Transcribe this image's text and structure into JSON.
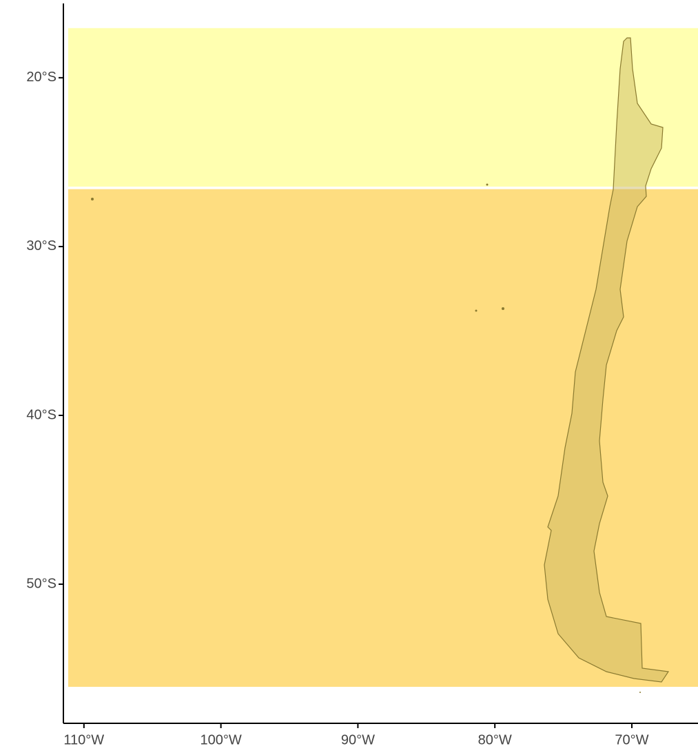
{
  "chart_data": {
    "type": "map",
    "xlim": [
      -111.5,
      -65.17
    ],
    "ylim": [
      -58.24,
      -15.6
    ],
    "xticks": [
      {
        "value": -110,
        "label": "110°W"
      },
      {
        "value": -100,
        "label": "100°W"
      },
      {
        "value": -90,
        "label": "90°W"
      },
      {
        "value": -80,
        "label": "80°W"
      },
      {
        "value": -70,
        "label": "70°W"
      }
    ],
    "yticks": [
      {
        "value": -20,
        "label": "20°S"
      },
      {
        "value": -30,
        "label": "30°S"
      },
      {
        "value": -40,
        "label": "40°S"
      },
      {
        "value": -50,
        "label": "50°S"
      }
    ],
    "zones": [
      {
        "color": "#ffffb0",
        "xlim": [
          -111.15,
          -65.17
        ],
        "ylim": [
          -26.45,
          -17.06
        ]
      },
      {
        "color": "#fedd80",
        "xlim": [
          -111.15,
          -65.17
        ],
        "ylim": [
          -56.08,
          -26.6
        ]
      }
    ]
  }
}
